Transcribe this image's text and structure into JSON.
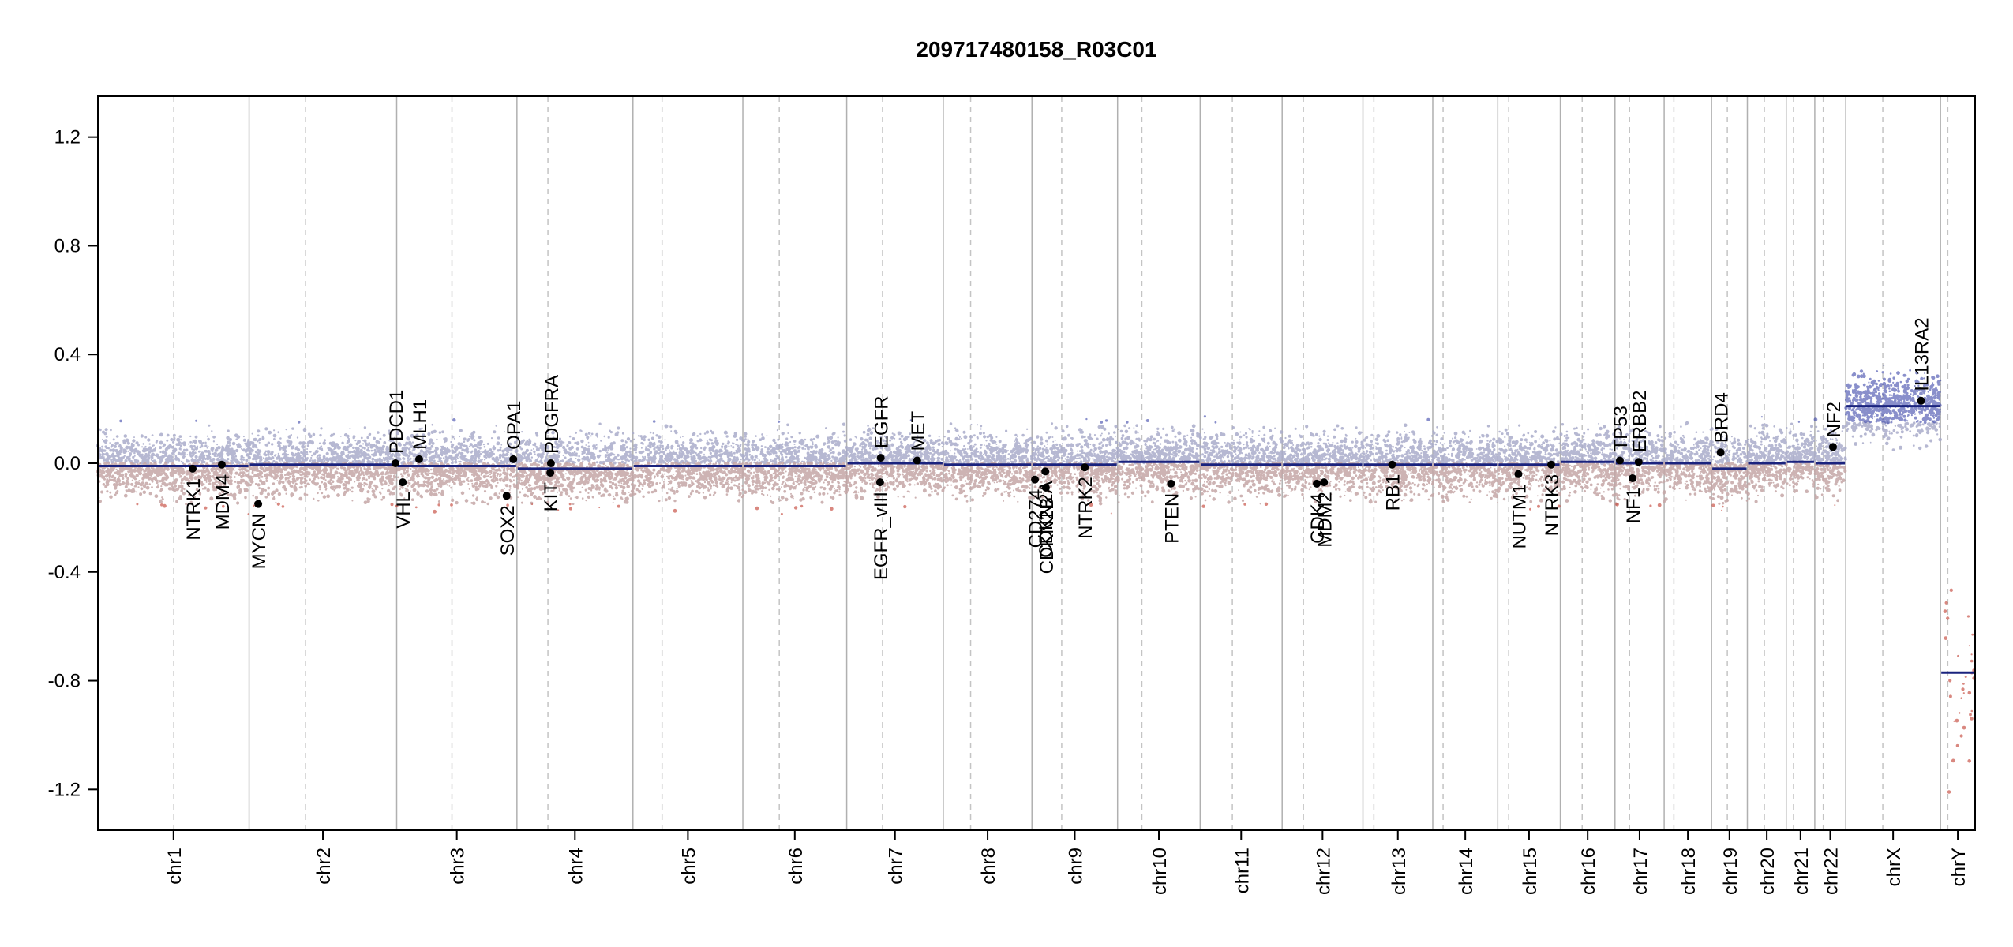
{
  "chart_data": {
    "type": "scatter",
    "title": "209717480158_R03C01",
    "xlabel": "",
    "ylabel": "",
    "ylim": [
      -1.35,
      1.35
    ],
    "yticks": [
      -1.2,
      -0.8,
      -0.4,
      0.0,
      0.4,
      0.8,
      1.2
    ],
    "ytick_labels": [
      "-1.2",
      "-0.8",
      "-0.4",
      "0.0",
      "0.4",
      "0.8",
      "1.2"
    ],
    "grid": false,
    "colors": {
      "gain": "#3b44a8",
      "loss": "#c0392b",
      "neutral_gain": "#a9abca",
      "neutral_loss": "#c4a6a6",
      "segment": "#1a237e",
      "gene": "#000000"
    },
    "chromosomes": [
      {
        "name": "chr1",
        "start": 0,
        "end": 249,
        "centromere": 125,
        "segment": -0.01
      },
      {
        "name": "chr2",
        "start": 249,
        "end": 492,
        "centromere": 342,
        "segment": -0.005
      },
      {
        "name": "chr3",
        "start": 492,
        "end": 690,
        "centromere": 583,
        "segment": -0.01
      },
      {
        "name": "chr4",
        "start": 690,
        "end": 881,
        "centromere": 741,
        "segment": -0.02
      },
      {
        "name": "chr5",
        "start": 881,
        "end": 1062,
        "centromere": 929,
        "segment": -0.01
      },
      {
        "name": "chr6",
        "start": 1062,
        "end": 1233,
        "centromere": 1122,
        "segment": -0.01
      },
      {
        "name": "chr7",
        "start": 1233,
        "end": 1392,
        "centromere": 1292,
        "segment": 0.0
      },
      {
        "name": "chr8",
        "start": 1392,
        "end": 1538,
        "centromere": 1437,
        "segment": -0.005
      },
      {
        "name": "chr9",
        "start": 1538,
        "end": 1679,
        "centromere": 1587,
        "segment": -0.005
      },
      {
        "name": "chr10",
        "start": 1679,
        "end": 1815,
        "centromere": 1719,
        "segment": 0.005
      },
      {
        "name": "chr11",
        "start": 1815,
        "end": 1950,
        "centromere": 1868,
        "segment": -0.005
      },
      {
        "name": "chr12",
        "start": 1950,
        "end": 2083,
        "centromere": 1985,
        "segment": -0.005
      },
      {
        "name": "chr13",
        "start": 2083,
        "end": 2198,
        "centromere": 2101,
        "segment": -0.005
      },
      {
        "name": "chr14",
        "start": 2198,
        "end": 2305,
        "centromere": 2215,
        "segment": -0.005
      },
      {
        "name": "chr15",
        "start": 2305,
        "end": 2408,
        "centromere": 2323,
        "segment": -0.005
      },
      {
        "name": "chr16",
        "start": 2408,
        "end": 2498,
        "centromere": 2444,
        "segment": 0.005
      },
      {
        "name": "chr17",
        "start": 2498,
        "end": 2579,
        "centromere": 2522,
        "segment": 0.0
      },
      {
        "name": "chr18",
        "start": 2579,
        "end": 2657,
        "centromere": 2595,
        "segment": 0.0
      },
      {
        "name": "chr19",
        "start": 2657,
        "end": 2716,
        "centromere": 2683,
        "segment": -0.02
      },
      {
        "name": "chr20",
        "start": 2716,
        "end": 2780,
        "centromere": 2744,
        "segment": 0.0
      },
      {
        "name": "chr21",
        "start": 2780,
        "end": 2827,
        "centromere": 2792,
        "segment": 0.005
      },
      {
        "name": "chr22",
        "start": 2827,
        "end": 2878,
        "centromere": 2841,
        "segment": 0.0
      },
      {
        "name": "chrX",
        "start": 2878,
        "end": 3034,
        "centromere": 2939,
        "segment": 0.21
      },
      {
        "name": "chrY",
        "start": 3034,
        "end": 3091,
        "centromere": 3046,
        "segment": -0.77
      }
    ],
    "genes": [
      {
        "name": "NTRK1",
        "pos": 156,
        "value": -0.02,
        "label_side": "below"
      },
      {
        "name": "MDM4",
        "pos": 204,
        "value": -0.005,
        "label_side": "below"
      },
      {
        "name": "MYCN",
        "pos": 264,
        "value": -0.15,
        "label_side": "below"
      },
      {
        "name": "PDCD1",
        "pos": 490,
        "value": 0.0,
        "label_side": "above"
      },
      {
        "name": "VHL",
        "pos": 502,
        "value": -0.07,
        "label_side": "below"
      },
      {
        "name": "MLH1",
        "pos": 529,
        "value": 0.015,
        "label_side": "above"
      },
      {
        "name": "SOX2",
        "pos": 673,
        "value": -0.12,
        "label_side": "below"
      },
      {
        "name": "OPA1",
        "pos": 684,
        "value": 0.015,
        "label_side": "above"
      },
      {
        "name": "KIT",
        "pos": 745,
        "value": -0.035,
        "label_side": "below"
      },
      {
        "name": "PDGFRA",
        "pos": 746,
        "value": 0.0,
        "label_side": "above"
      },
      {
        "name": "EGFR_vIII",
        "pos": 1288,
        "value": -0.07,
        "label_side": "below"
      },
      {
        "name": "EGFR",
        "pos": 1289,
        "value": 0.02,
        "label_side": "above"
      },
      {
        "name": "MET",
        "pos": 1349,
        "value": 0.01,
        "label_side": "above"
      },
      {
        "name": "CD274",
        "pos": 1543,
        "value": -0.06,
        "label_side": "below"
      },
      {
        "name": "CDKN2A",
        "pos": 1560,
        "value": -0.03,
        "label_side": "below"
      },
      {
        "name": "CDKN2B",
        "pos": 1561,
        "value": -0.09,
        "label_side": "below"
      },
      {
        "name": "NTRK2",
        "pos": 1625,
        "value": -0.015,
        "label_side": "below"
      },
      {
        "name": "PTEN",
        "pos": 1767,
        "value": -0.075,
        "label_side": "below"
      },
      {
        "name": "CDK4",
        "pos": 2007,
        "value": -0.075,
        "label_side": "below"
      },
      {
        "name": "MDM2",
        "pos": 2019,
        "value": -0.07,
        "label_side": "below"
      },
      {
        "name": "RB1",
        "pos": 2131,
        "value": -0.005,
        "label_side": "below"
      },
      {
        "name": "NUTM1",
        "pos": 2339,
        "value": -0.04,
        "label_side": "below"
      },
      {
        "name": "NTRK3",
        "pos": 2393,
        "value": -0.005,
        "label_side": "below"
      },
      {
        "name": "TP53",
        "pos": 2506,
        "value": 0.01,
        "label_side": "above"
      },
      {
        "name": "NF1",
        "pos": 2527,
        "value": -0.055,
        "label_side": "below"
      },
      {
        "name": "ERBB2",
        "pos": 2537,
        "value": 0.005,
        "label_side": "above"
      },
      {
        "name": "BRD4",
        "pos": 2672,
        "value": 0.04,
        "label_side": "above"
      },
      {
        "name": "NF2",
        "pos": 2857,
        "value": 0.06,
        "label_side": "above"
      },
      {
        "name": "IL13RA2",
        "pos": 3002,
        "value": 0.23,
        "label_side": "above"
      }
    ]
  }
}
